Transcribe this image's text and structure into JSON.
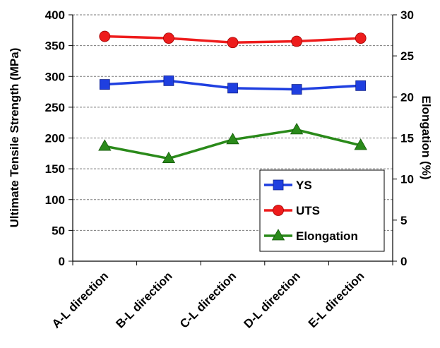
{
  "chart_data": {
    "type": "line",
    "categories": [
      "A-L direction",
      "B-L direction",
      "C-L direction",
      "D-L direction",
      "E-L direction"
    ],
    "y_left": {
      "label": "Ultimate Tensile Strength (MPa)",
      "range": [
        0,
        400
      ],
      "ticks": [
        "0",
        "50",
        "100",
        "150",
        "200",
        "250",
        "300",
        "350",
        "400"
      ]
    },
    "y_right": {
      "label": "Elongation (%)",
      "range": [
        0,
        30
      ],
      "ticks": [
        "0",
        "5",
        "10",
        "15",
        "20",
        "25",
        "30"
      ]
    },
    "grid": "horizontal dashed",
    "legend_position": "bottom-right",
    "series": [
      {
        "name": "YS",
        "axis": "left",
        "color": "#1f3fe0",
        "marker": "square",
        "values": [
          287,
          293,
          281,
          279,
          285
        ]
      },
      {
        "name": "UTS",
        "axis": "left",
        "color": "#ee1c1c",
        "marker": "circle",
        "values": [
          365,
          362,
          355,
          357,
          362
        ]
      },
      {
        "name": "Elongation",
        "axis": "right",
        "color": "#2a8a1a",
        "marker": "triangle",
        "values": [
          14.0,
          12.5,
          14.8,
          16.0,
          14.1
        ]
      }
    ]
  }
}
